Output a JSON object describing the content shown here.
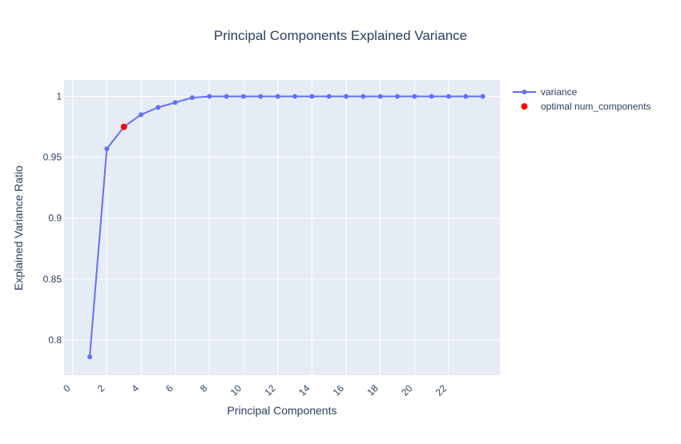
{
  "chart_data": {
    "type": "line",
    "title": "Principal Components Explained Variance",
    "xlabel": "Principal Components",
    "ylabel": "Explained Variance Ratio",
    "xlim": [
      -0.5,
      25
    ],
    "ylim": [
      0.771,
      1.0135
    ],
    "x_ticks": [
      0,
      2,
      4,
      6,
      8,
      10,
      12,
      14,
      16,
      18,
      20,
      22
    ],
    "y_ticks": [
      0.8,
      0.85,
      0.9,
      0.95,
      1
    ],
    "y_tick_labels": [
      "0.8",
      "0.85",
      "0.9",
      "0.95",
      "1"
    ],
    "grid": true,
    "legend_position": "top-right",
    "series": [
      {
        "name": "variance",
        "mode": "lines+markers",
        "color": "#636efa",
        "x": [
          1,
          2,
          3,
          4,
          5,
          6,
          7,
          8,
          9,
          10,
          11,
          12,
          13,
          14,
          15,
          16,
          17,
          18,
          19,
          20,
          21,
          22,
          23,
          24
        ],
        "y": [
          0.786,
          0.957,
          0.975,
          0.985,
          0.991,
          0.995,
          0.999,
          1.0,
          1.0,
          1.0,
          1.0,
          1.0,
          1.0,
          1.0,
          1.0,
          1.0,
          1.0,
          1.0,
          1.0,
          1.0,
          1.0,
          1.0,
          1.0,
          1.0
        ]
      },
      {
        "name": "optimal num_components",
        "mode": "markers",
        "color": "#ff0000",
        "x": [
          3
        ],
        "y": [
          0.975
        ]
      }
    ]
  }
}
